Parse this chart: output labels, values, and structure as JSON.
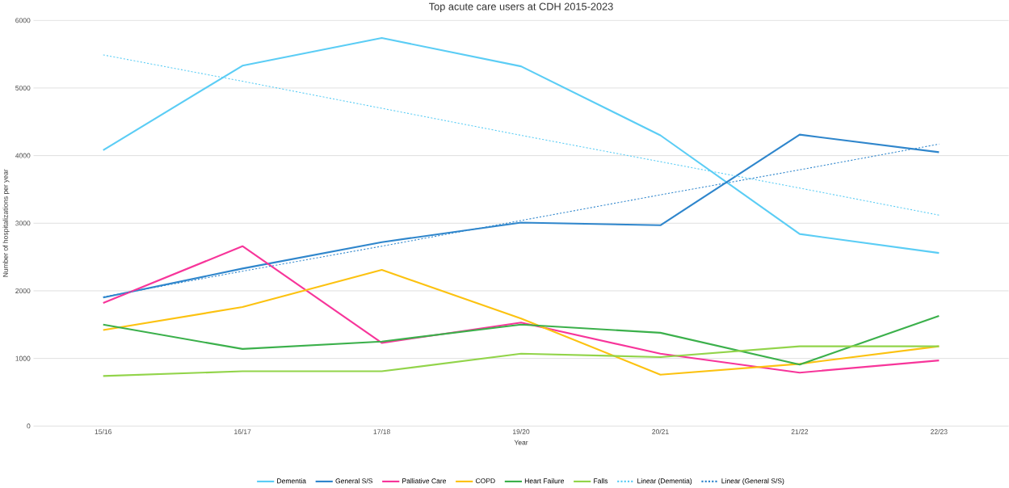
{
  "chart_data": {
    "type": "line",
    "title": "Top acute care users at CDH 2015-2023",
    "xlabel": "Year",
    "ylabel": "Number of hospitalizations per year",
    "categories": [
      "15/16",
      "16/17",
      "17/18",
      "19/20",
      "20/21",
      "21/22",
      "22/23"
    ],
    "series": [
      {
        "name": "Dementia",
        "color": "#5bcdf5",
        "values": [
          4080,
          5330,
          5740,
          5320,
          4300,
          2840,
          2560
        ]
      },
      {
        "name": "General S/S",
        "color": "#2f86cc",
        "values": [
          1900,
          2330,
          2720,
          3010,
          2970,
          4310,
          4050
        ]
      },
      {
        "name": "Palliative Care",
        "color": "#f7359a",
        "values": [
          1820,
          2660,
          1230,
          1530,
          1070,
          790,
          970
        ]
      },
      {
        "name": "COPD",
        "color": "#fcc210",
        "values": [
          1420,
          1760,
          2310,
          1590,
          760,
          920,
          1180
        ]
      },
      {
        "name": "Heart Failure",
        "color": "#3bb04b",
        "values": [
          1500,
          1140,
          1250,
          1500,
          1380,
          910,
          1630
        ]
      },
      {
        "name": "Falls",
        "color": "#92d44a",
        "values": [
          740,
          810,
          810,
          1070,
          1020,
          1180,
          1180
        ]
      },
      {
        "name": "Linear (Dementia)",
        "color": "#5bcdf5",
        "line_style": "dotted",
        "values": [
          5490,
          5100,
          4700,
          4300,
          3910,
          3520,
          3120
        ]
      },
      {
        "name": "Linear (General S/S)",
        "color": "#2f86cc",
        "line_style": "dotted",
        "values": [
          1910,
          2290,
          2660,
          3040,
          3420,
          3790,
          4170
        ]
      }
    ],
    "ylim": [
      0,
      6000
    ],
    "yticks": [
      0,
      1000,
      2000,
      3000,
      4000,
      5000,
      6000
    ],
    "grid": "y",
    "legend": "bottom",
    "marker": "none",
    "line_style": "solid"
  }
}
